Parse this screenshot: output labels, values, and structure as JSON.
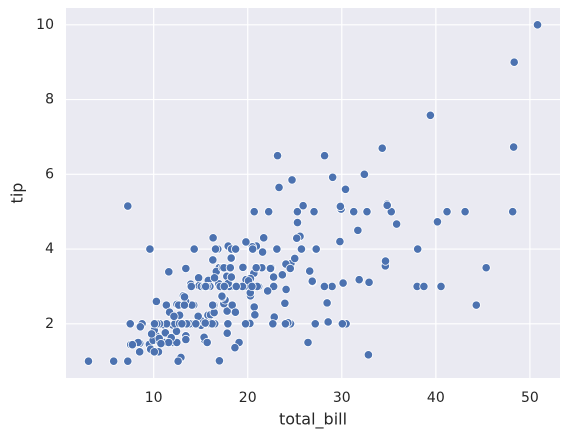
{
  "chart_data": {
    "type": "scatter",
    "xlabel": "total_bill",
    "ylabel": "tip",
    "color": "#4c72b0",
    "grid": true,
    "xlim": [
      0.68,
      53.2
    ],
    "ylim": [
      0.55,
      10.45
    ],
    "xticks": [
      10,
      20,
      30,
      40,
      50
    ],
    "yticks": [
      2,
      4,
      6,
      8,
      10
    ],
    "x": [
      16.99,
      10.34,
      21.01,
      23.68,
      24.59,
      25.29,
      8.77,
      26.88,
      15.04,
      14.78,
      10.27,
      35.26,
      15.42,
      18.43,
      14.83,
      21.58,
      10.33,
      16.29,
      16.97,
      20.65,
      17.92,
      20.29,
      15.77,
      39.42,
      19.82,
      17.81,
      13.37,
      12.69,
      21.7,
      19.65,
      9.55,
      18.35,
      15.06,
      20.69,
      17.78,
      24.06,
      16.31,
      16.93,
      18.69,
      31.27,
      16.04,
      17.46,
      13.94,
      9.68,
      30.4,
      18.29,
      22.23,
      32.4,
      28.55,
      18.04,
      12.54,
      10.29,
      34.81,
      9.94,
      25.56,
      19.49,
      38.01,
      26.41,
      11.24,
      48.27,
      20.29,
      13.81,
      11.02,
      18.29,
      17.59,
      20.08,
      16.45,
      3.07,
      20.23,
      15.01,
      12.02,
      17.07,
      26.86,
      25.28,
      14.73,
      10.51,
      17.92,
      27.2,
      22.76,
      17.29,
      19.44,
      16.66,
      10.07,
      32.68,
      15.98,
      34.83,
      13.03,
      18.28,
      24.71,
      21.16,
      28.97,
      22.49,
      5.75,
      16.32,
      22.75,
      40.17,
      27.28,
      12.03,
      21.01,
      12.46,
      11.35,
      15.38,
      44.3,
      22.42,
      20.92,
      15.36,
      20.49,
      25.21,
      18.24,
      14.31,
      14.0,
      7.25,
      38.07,
      23.95,
      25.71,
      17.31,
      29.93,
      10.65,
      12.43,
      24.08,
      11.69,
      13.42,
      14.26,
      15.95,
      12.48,
      29.8,
      8.52,
      14.52,
      11.38,
      22.82,
      19.08,
      20.27,
      11.17,
      12.26,
      18.26,
      8.51,
      10.33,
      14.15,
      16.0,
      13.16,
      17.47,
      34.3,
      41.19,
      27.05,
      16.43,
      8.35,
      18.64,
      11.87,
      9.78,
      7.51,
      14.07,
      13.13,
      17.26,
      24.55,
      19.77,
      29.85,
      48.17,
      25.0,
      13.39,
      16.49,
      21.5,
      12.66,
      16.21,
      13.81,
      17.51,
      24.52,
      20.76,
      31.71,
      10.59,
      10.63,
      50.81,
      15.81,
      7.25,
      31.85,
      16.82,
      32.9,
      17.89,
      14.48,
      9.6,
      34.63,
      34.65,
      23.33,
      45.35,
      23.17,
      40.55,
      20.69,
      20.9,
      30.46,
      18.15,
      23.1,
      15.69,
      19.81,
      28.44,
      15.48,
      16.58,
      7.56,
      10.34,
      43.11,
      13.0,
      13.51,
      18.71,
      12.74,
      13.0,
      16.4,
      20.53,
      16.47,
      26.59,
      38.73,
      24.27,
      12.76,
      30.06,
      25.89,
      48.33,
      13.27,
      28.17,
      12.9,
      28.15,
      11.59,
      7.74,
      30.14,
      12.16,
      13.42,
      8.58,
      15.98,
      13.42,
      16.27,
      10.09,
      20.45,
      13.28,
      22.12,
      24.01,
      15.69,
      11.61,
      10.77,
      15.53,
      10.07,
      12.6,
      32.83,
      35.83,
      29.03,
      27.18,
      22.67,
      17.82,
      18.78
    ],
    "values": [
      1.01,
      1.66,
      3.5,
      3.31,
      3.61,
      4.71,
      2.0,
      3.12,
      1.96,
      3.23,
      1.71,
      5.0,
      1.57,
      3.0,
      3.02,
      3.92,
      1.67,
      3.71,
      3.5,
      3.35,
      4.08,
      2.75,
      2.23,
      7.58,
      3.18,
      2.34,
      2.0,
      2.0,
      4.3,
      3.0,
      1.45,
      2.5,
      3.0,
      2.45,
      3.27,
      3.6,
      2.0,
      3.07,
      2.31,
      5.0,
      2.24,
      2.54,
      3.06,
      1.32,
      5.6,
      3.0,
      5.0,
      6.0,
      2.05,
      3.0,
      2.5,
      2.6,
      5.2,
      1.56,
      4.34,
      3.51,
      3.0,
      1.5,
      1.76,
      6.73,
      3.21,
      2.0,
      1.98,
      3.76,
      2.64,
      3.15,
      2.47,
      1.0,
      2.01,
      2.09,
      1.97,
      3.0,
      3.14,
      5.0,
      2.2,
      1.25,
      3.08,
      4.0,
      3.0,
      2.71,
      3.0,
      3.4,
      1.83,
      5.0,
      2.03,
      5.17,
      2.0,
      4.0,
      5.85,
      3.0,
      3.0,
      3.5,
      1.0,
      4.3,
      3.25,
      4.73,
      4.0,
      1.5,
      3.0,
      1.5,
      2.5,
      3.0,
      2.5,
      3.48,
      4.08,
      1.64,
      4.06,
      4.29,
      3.76,
      4.0,
      3.0,
      1.0,
      4.0,
      2.55,
      4.0,
      3.5,
      5.07,
      1.5,
      1.8,
      2.92,
      2.31,
      1.68,
      2.5,
      2.0,
      2.52,
      4.2,
      1.48,
      2.0,
      2.0,
      2.18,
      1.5,
      2.83,
      1.5,
      2.0,
      3.25,
      1.25,
      2.0,
      2.0,
      2.0,
      2.75,
      3.5,
      6.7,
      5.0,
      5.0,
      2.3,
      1.5,
      1.36,
      1.63,
      1.73,
      2.0,
      2.5,
      2.0,
      2.74,
      2.0,
      2.0,
      5.14,
      5.0,
      3.75,
      2.61,
      2.0,
      3.5,
      2.5,
      2.0,
      2.0,
      3.0,
      3.48,
      2.24,
      4.5,
      1.61,
      2.0,
      10.0,
      3.16,
      5.15,
      3.18,
      4.0,
      3.11,
      2.0,
      2.0,
      4.0,
      3.55,
      3.68,
      5.65,
      3.5,
      6.5,
      3.0,
      5.0,
      3.5,
      2.0,
      3.5,
      4.0,
      1.5,
      4.19,
      2.56,
      2.02,
      4.0,
      1.44,
      2.0,
      5.0,
      2.0,
      2.0,
      4.0,
      2.01,
      2.0,
      2.5,
      4.0,
      3.23,
      3.41,
      3.0,
      2.03,
      2.23,
      2.0,
      5.16,
      9.0,
      2.5,
      6.5,
      1.1,
      3.0,
      1.5,
      1.44,
      3.09,
      2.2,
      3.48,
      1.92,
      3.0,
      1.58,
      2.5,
      2.0,
      3.0,
      2.72,
      2.88,
      2.0,
      3.0,
      3.39,
      1.47,
      3.0,
      1.25,
      1.0,
      1.17,
      4.67,
      5.92,
      2.0,
      2.0,
      1.75,
      3.0
    ]
  }
}
